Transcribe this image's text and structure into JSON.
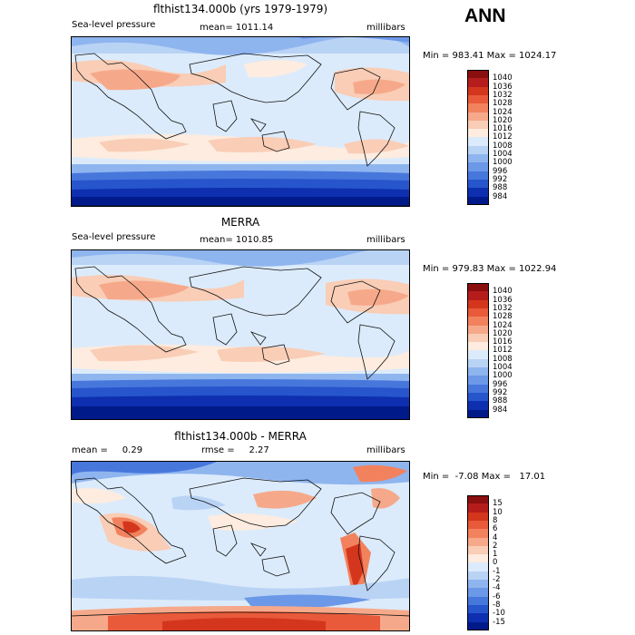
{
  "header": {
    "season": "ANN"
  },
  "panels": [
    {
      "title": "flthist134.000b (yrs 1979-1979)",
      "left_label": "Sea-level pressure",
      "mid_label": "mean= 1011.14",
      "units": "millibars",
      "stats": "Min = 983.41 Max = 1024.17",
      "colorbar": {
        "labels": [
          "1040",
          "1036",
          "1032",
          "1028",
          "1024",
          "1020",
          "1016",
          "1012",
          "1008",
          "1004",
          "1000",
          "996",
          "992",
          "988",
          "984"
        ],
        "colors": [
          "#8a0f0f",
          "#b51d1d",
          "#d4361d",
          "#e85a3a",
          "#f2825e",
          "#f6a98a",
          "#f9cdb6",
          "#fdecdf",
          "#dcebfb",
          "#b9d3f5",
          "#8fb5ef",
          "#6c98e8",
          "#4877dc",
          "#2655cc",
          "#0d2fb0",
          "#001a8a"
        ]
      }
    },
    {
      "title": "MERRA",
      "left_label": "Sea-level pressure",
      "mid_label": "mean= 1010.85",
      "units": "millibars",
      "stats": "Min = 979.83 Max = 1022.94",
      "colorbar": {
        "labels": [
          "1040",
          "1036",
          "1032",
          "1028",
          "1024",
          "1020",
          "1016",
          "1012",
          "1008",
          "1004",
          "1000",
          "996",
          "992",
          "988",
          "984"
        ],
        "colors": [
          "#8a0f0f",
          "#b51d1d",
          "#d4361d",
          "#e85a3a",
          "#f2825e",
          "#f6a98a",
          "#f9cdb6",
          "#fdecdf",
          "#dcebfb",
          "#b9d3f5",
          "#8fb5ef",
          "#6c98e8",
          "#4877dc",
          "#2655cc",
          "#0d2fb0",
          "#001a8a"
        ]
      }
    },
    {
      "title": "flthist134.000b - MERRA",
      "left_label": "mean =     0.29",
      "mid_label": "rmse =     2.27",
      "units": "millibars",
      "stats": "Min =  -7.08 Max =   17.01",
      "colorbar": {
        "labels": [
          "15",
          "10",
          "8",
          "6",
          "4",
          "2",
          "1",
          "0",
          "-1",
          "-2",
          "-4",
          "-6",
          "-8",
          "-10",
          "-15"
        ],
        "colors": [
          "#8a0f0f",
          "#b51d1d",
          "#d4361d",
          "#e85a3a",
          "#f2825e",
          "#f6a98a",
          "#f9cdb6",
          "#fdecdf",
          "#dcebfb",
          "#b9d3f5",
          "#8fb5ef",
          "#6c98e8",
          "#4877dc",
          "#2655cc",
          "#0d2fb0",
          "#001a8a"
        ]
      }
    }
  ]
}
